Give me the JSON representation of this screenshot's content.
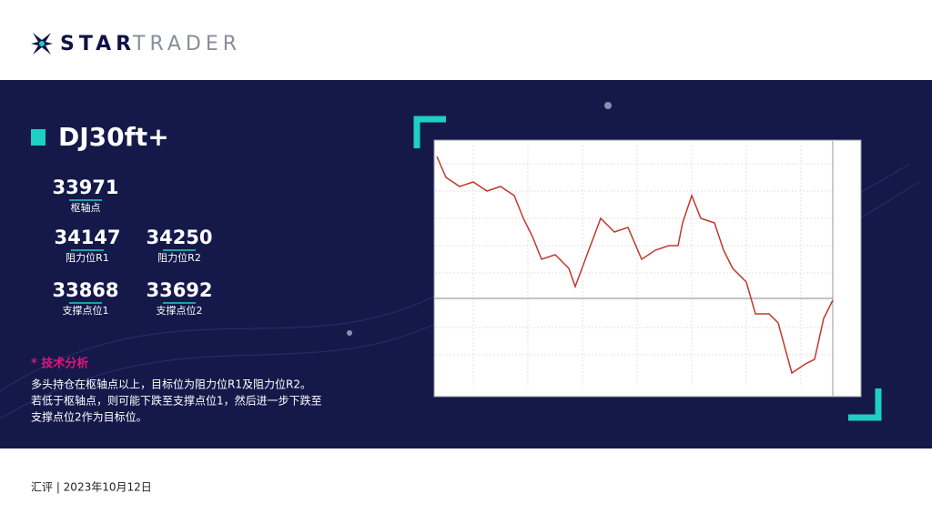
{
  "header": {
    "logo_bold": "STAR",
    "logo_light": "TRADER"
  },
  "title": "DJ30ft+",
  "levels": [
    {
      "value": 33971,
      "label": "枢轴点"
    },
    {
      "value": 34147,
      "label": "阻力位R1"
    },
    {
      "value": 34250,
      "label": "阻力位R2"
    },
    {
      "value": 33868,
      "label": "支撑点位1"
    },
    {
      "value": 33692,
      "label": "支撑点位2"
    }
  ],
  "analysis": {
    "heading": "* 技术分析",
    "lines": [
      "多头持仓在枢轴点以上，目标位为阻力位R1及阻力位R2。",
      "若低于枢轴点，则可能下跌至支撑点位1，然后进一步下跌至",
      "支撑点位2作为目标位。"
    ]
  },
  "footer": "汇评 | 2023年10月12日"
}
